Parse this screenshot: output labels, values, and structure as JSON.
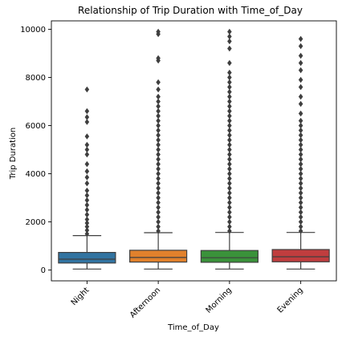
{
  "chart_data": {
    "type": "box",
    "title": "Relationship of Trip Duration with Time_of_Day",
    "xlabel": "Time_of_Day",
    "ylabel": "Trip Duration",
    "ylim": [
      -450,
      10350
    ],
    "yticks": [
      0,
      2000,
      4000,
      6000,
      8000,
      10000
    ],
    "grid": false,
    "legend": "none",
    "categories": [
      "Night",
      "Afternoon",
      "Morning",
      "Evening"
    ],
    "colors": [
      "#3274a1",
      "#e1812c",
      "#3a923a",
      "#c03d3e"
    ],
    "boxes": [
      {
        "name": "Night",
        "whisker_low": 40,
        "q1": 290,
        "median": 450,
        "q3": 730,
        "whisker_high": 1430,
        "outliers": [
          1500,
          1650,
          1800,
          1950,
          2100,
          2300,
          2500,
          2700,
          2900,
          3100,
          3300,
          3600,
          3850,
          4100,
          4400,
          4800,
          5000,
          5200,
          5550,
          6150,
          6350,
          6600,
          7500
        ]
      },
      {
        "name": "Afternoon",
        "whisker_low": 40,
        "q1": 330,
        "median": 520,
        "q3": 820,
        "whisker_high": 1550,
        "outliers": [
          1620,
          1800,
          2000,
          2200,
          2400,
          2600,
          2800,
          3000,
          3200,
          3400,
          3600,
          3800,
          4000,
          4200,
          4400,
          4600,
          4800,
          5000,
          5200,
          5400,
          5600,
          5800,
          6000,
          6200,
          6400,
          6600,
          6800,
          7000,
          7200,
          7500,
          7800,
          8700,
          8800,
          9800,
          9900
        ]
      },
      {
        "name": "Morning",
        "whisker_low": 40,
        "q1": 320,
        "median": 510,
        "q3": 810,
        "whisker_high": 1560,
        "outliers": [
          1620,
          1800,
          2000,
          2200,
          2400,
          2600,
          2800,
          3000,
          3200,
          3400,
          3600,
          3800,
          4000,
          4200,
          4400,
          4600,
          4800,
          5000,
          5200,
          5400,
          5600,
          5800,
          6000,
          6200,
          6400,
          6600,
          6800,
          7000,
          7200,
          7400,
          7600,
          7800,
          8000,
          8200,
          8600,
          9200,
          9500,
          9700,
          9900
        ]
      },
      {
        "name": "Evening",
        "whisker_low": 40,
        "q1": 340,
        "median": 550,
        "q3": 850,
        "whisker_high": 1560,
        "outliers": [
          1620,
          1800,
          2000,
          2200,
          2400,
          2600,
          2800,
          3000,
          3200,
          3400,
          3600,
          3800,
          4000,
          4200,
          4400,
          4600,
          4800,
          5000,
          5200,
          5400,
          5600,
          5800,
          6000,
          6200,
          6500,
          6900,
          7200,
          7600,
          7900,
          8300,
          8600,
          8900,
          9300,
          9600
        ]
      }
    ]
  }
}
